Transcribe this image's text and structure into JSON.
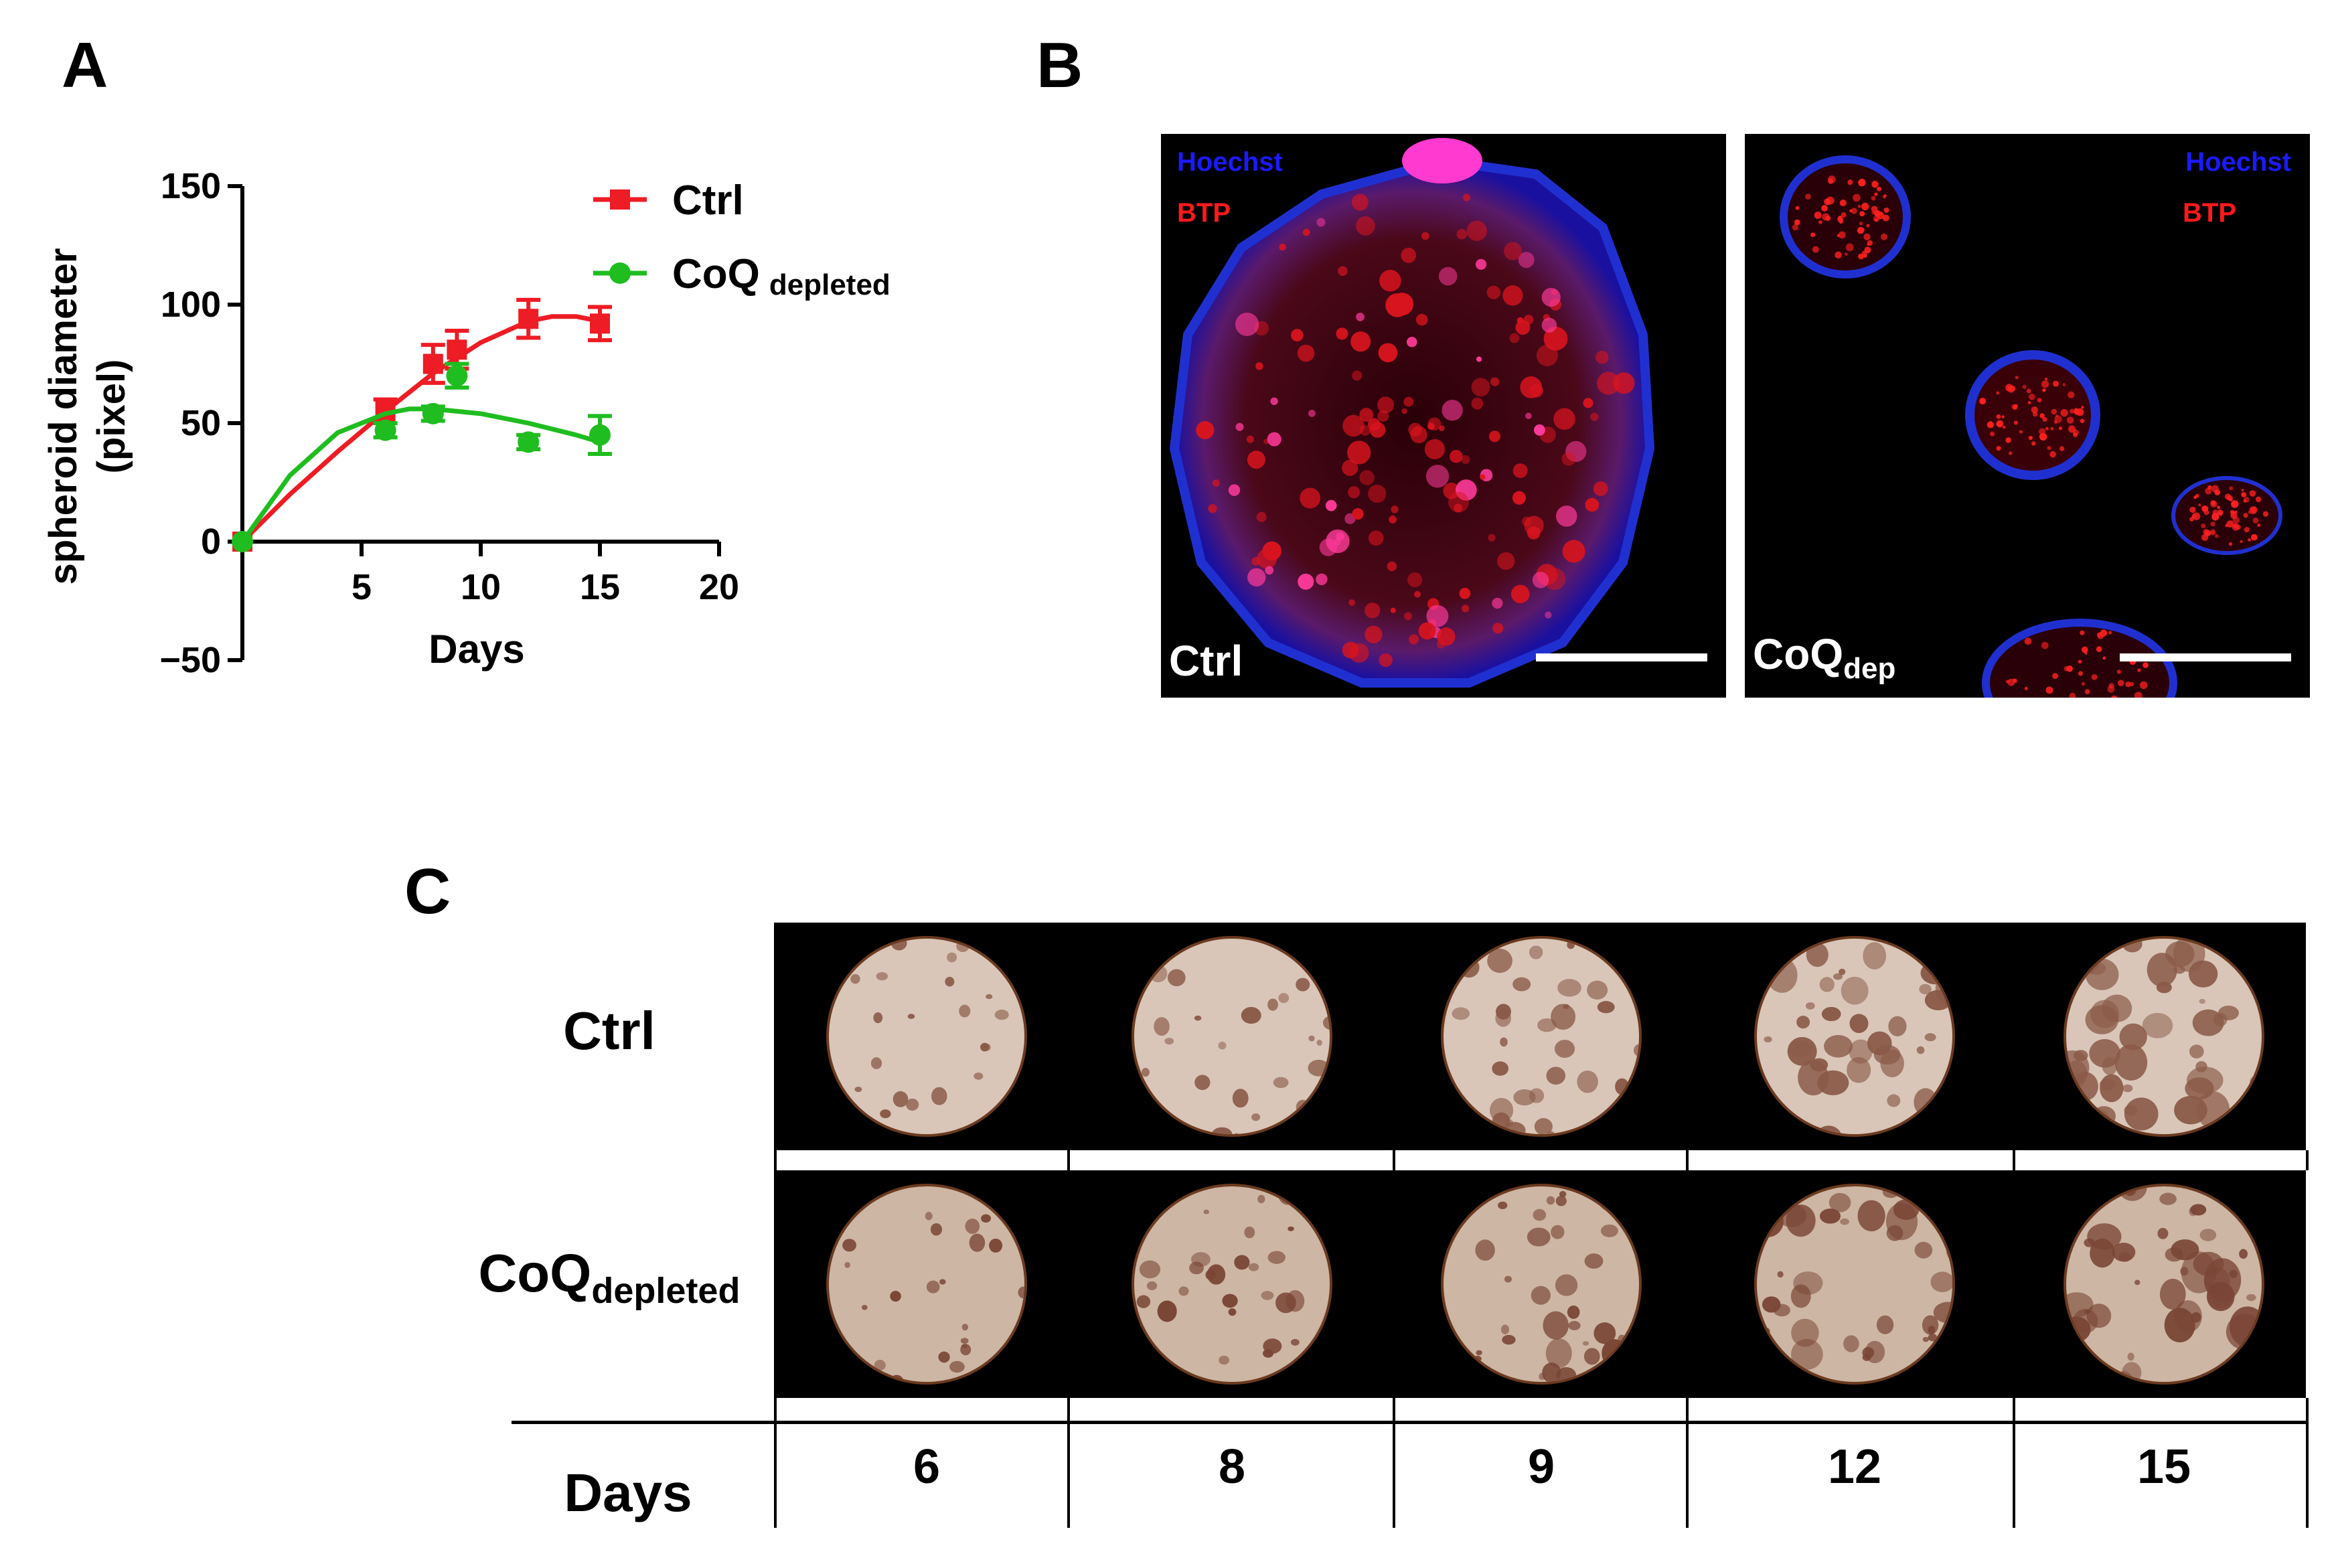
{
  "panels": {
    "a_letter": "A",
    "b_letter": "B",
    "c_letter": "C"
  },
  "chart_data": {
    "type": "line",
    "xlabel": "Days",
    "ylabel_line1": "spheroid diameter",
    "ylabel_line2": "(pixel)",
    "xlim": [
      0,
      20
    ],
    "ylim": [
      -50,
      150
    ],
    "x_ticks": [
      5,
      10,
      15,
      20
    ],
    "x_tick_labels": [
      "5",
      "10",
      "15",
      "20"
    ],
    "y_ticks": [
      -50,
      0,
      50,
      100,
      150
    ],
    "y_tick_labels": [
      "−50",
      "0",
      "50",
      "100",
      "150"
    ],
    "grid": false,
    "legend_placement": "top-right",
    "series": [
      {
        "name": "Ctrl",
        "color": "#ee1c24",
        "marker": "square",
        "x": [
          0,
          6,
          8,
          9,
          12,
          15
        ],
        "y": [
          0,
          55,
          75,
          81,
          94,
          92
        ],
        "err": [
          0,
          5,
          8,
          8,
          8,
          7
        ],
        "fit_x": [
          0,
          2,
          4,
          6,
          8,
          10,
          12,
          13,
          14,
          15
        ],
        "fit_y": [
          0,
          20,
          38,
          55,
          71,
          84,
          93,
          95,
          95,
          93
        ]
      },
      {
        "name": "CoQ",
        "name_sub": "depleted",
        "color": "#1fbd1f",
        "marker": "circle",
        "x": [
          0,
          6,
          8,
          9,
          12,
          15
        ],
        "y": [
          0,
          47,
          54,
          70,
          42,
          45
        ],
        "err": [
          0,
          3,
          3,
          5,
          3,
          8
        ],
        "fit_x": [
          0,
          2,
          4,
          6,
          7,
          8,
          10,
          12,
          14,
          15
        ],
        "fit_y": [
          0,
          28,
          46,
          54,
          56,
          56,
          54,
          50,
          45,
          42
        ]
      }
    ]
  },
  "panel_b": {
    "ctrl": {
      "ch1": "Hoechst",
      "ch2": "BTP",
      "label": "Ctrl"
    },
    "coq": {
      "ch1": "Hoechst",
      "ch2": "BTP",
      "label": "CoQ",
      "label_sub": "dep"
    },
    "ch1_color": "#1a1aff",
    "ch2_color": "#ff1a1a"
  },
  "panel_c": {
    "row1_label": "Ctrl",
    "row2_label": "CoQ",
    "row2_sub": "depleted",
    "days_label": "Days",
    "days": [
      "6",
      "8",
      "9",
      "12",
      "15"
    ]
  }
}
